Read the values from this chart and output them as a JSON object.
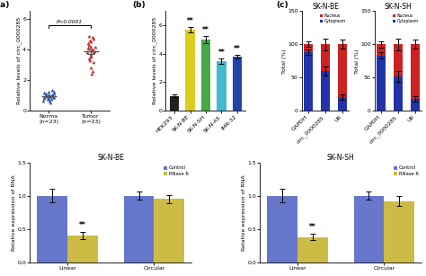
{
  "panel_a": {
    "ylabel": "Relative levels of circ_0000285",
    "groups": [
      "Norma\n(n=23)",
      "Tumor\n(n=23)"
    ],
    "normal_points": [
      0.85,
      1.05,
      0.95,
      0.75,
      1.15,
      0.65,
      1.25,
      0.88,
      0.98,
      1.08,
      0.55,
      1.35,
      0.78,
      1.18,
      0.92,
      0.87,
      1.02,
      0.82,
      1.22,
      0.68,
      0.97,
      0.91,
      1.12
    ],
    "tumor_points": [
      2.4,
      4.2,
      3.8,
      4.5,
      3.2,
      4.8,
      3.5,
      4.1,
      3.7,
      4.6,
      2.8,
      4.3,
      3.9,
      4.7,
      3.4,
      4.0,
      4.4,
      3.6,
      4.9,
      2.6,
      3.3,
      4.2,
      3.8
    ],
    "normal_color": "#3355aa",
    "tumor_color": "#cc2222",
    "ylim": [
      0,
      6.5
    ],
    "yticks": [
      0,
      2,
      4,
      6
    ],
    "pvalue_text": "P<0.0001"
  },
  "panel_b": {
    "ylabel": "Relative levels of circ_0000285",
    "categories": [
      "HEK293",
      "SK-N-BE",
      "SK-N-SH",
      "SK-N-AS",
      "IMR-32"
    ],
    "values": [
      1.05,
      5.7,
      5.0,
      3.5,
      3.8
    ],
    "errors": [
      0.07,
      0.2,
      0.25,
      0.2,
      0.15
    ],
    "colors": [
      "#222222",
      "#ddcc22",
      "#44aa44",
      "#44bbcc",
      "#2244aa"
    ],
    "ylim": [
      0,
      7
    ],
    "yticks": [
      0,
      2,
      4,
      6
    ],
    "sig_labels": [
      "",
      "**",
      "**",
      "**",
      "**"
    ]
  },
  "panel_c": {
    "categories": [
      "GAPDH",
      "circ_0000285",
      "U6"
    ],
    "sknbe_cyto": [
      88,
      60,
      20
    ],
    "sknbe_nuc": [
      12,
      40,
      80
    ],
    "sknbe_cyto_err": [
      4,
      7,
      4
    ],
    "sknbe_nuc_err": [
      4,
      9,
      7
    ],
    "sknsh_cyto": [
      83,
      52,
      18
    ],
    "sknsh_nuc": [
      17,
      48,
      82
    ],
    "sknsh_cyto_err": [
      5,
      8,
      4
    ],
    "sknsh_nuc_err": [
      5,
      9,
      7
    ],
    "cyto_color": "#2233aa",
    "nuc_color": "#cc2222",
    "ylim": [
      0,
      150
    ],
    "yticks": [
      0,
      50,
      100,
      150
    ],
    "ylabel": "Total (%)",
    "subtitle_be": "SK-N-BE",
    "subtitle_sh": "SK-N-SH"
  },
  "panel_d": {
    "categories": [
      "Linear",
      "Circular"
    ],
    "control_vals": [
      1.0,
      1.0
    ],
    "rnaser_vals_be": [
      0.4,
      0.95
    ],
    "rnaser_vals_sh": [
      0.38,
      0.92
    ],
    "control_err_be": [
      0.1,
      0.06
    ],
    "control_err_sh": [
      0.1,
      0.06
    ],
    "rnaser_err_be": [
      0.05,
      0.06
    ],
    "rnaser_err_sh": [
      0.05,
      0.07
    ],
    "control_color": "#6677cc",
    "rnaser_color": "#ccbb44",
    "ylim": [
      0,
      1.5
    ],
    "yticks": [
      0.0,
      0.5,
      1.0,
      1.5
    ],
    "ylabel": "Relative expression of RNA",
    "subtitle_be": "SK-N-BE",
    "subtitle_sh": "SK-N-SH",
    "sig_linear": "**"
  },
  "background_color": "#ffffff"
}
